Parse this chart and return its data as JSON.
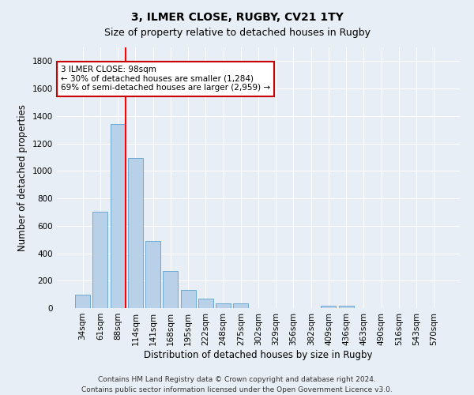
{
  "title": "3, ILMER CLOSE, RUGBY, CV21 1TY",
  "subtitle": "Size of property relative to detached houses in Rugby",
  "xlabel": "Distribution of detached houses by size in Rugby",
  "ylabel": "Number of detached properties",
  "categories": [
    "34sqm",
    "61sqm",
    "88sqm",
    "114sqm",
    "141sqm",
    "168sqm",
    "195sqm",
    "222sqm",
    "248sqm",
    "275sqm",
    "302sqm",
    "329sqm",
    "356sqm",
    "382sqm",
    "409sqm",
    "436sqm",
    "463sqm",
    "490sqm",
    "516sqm",
    "543sqm",
    "570sqm"
  ],
  "values": [
    100,
    700,
    1340,
    1095,
    490,
    270,
    135,
    70,
    35,
    35,
    0,
    0,
    0,
    0,
    15,
    20,
    0,
    0,
    0,
    0,
    0
  ],
  "bar_color": "#b8d0e8",
  "bar_edgecolor": "#6aaad4",
  "ylim": [
    0,
    1900
  ],
  "yticks": [
    0,
    200,
    400,
    600,
    800,
    1000,
    1200,
    1400,
    1600,
    1800
  ],
  "annotation_line1": "3 ILMER CLOSE: 98sqm",
  "annotation_line2": "← 30% of detached houses are smaller (1,284)",
  "annotation_line3": "69% of semi-detached houses are larger (2,959) →",
  "annotation_box_color": "#ffffff",
  "annotation_box_edgecolor": "#cc0000",
  "red_line_bar_index": 2,
  "footnote1": "Contains HM Land Registry data © Crown copyright and database right 2024.",
  "footnote2": "Contains public sector information licensed under the Open Government Licence v3.0.",
  "background_color": "#e8eef5",
  "grid_color": "#ffffff",
  "title_fontsize": 10,
  "subtitle_fontsize": 9,
  "tick_fontsize": 7.5,
  "ylabel_fontsize": 8.5,
  "xlabel_fontsize": 8.5,
  "footnote_fontsize": 6.5
}
